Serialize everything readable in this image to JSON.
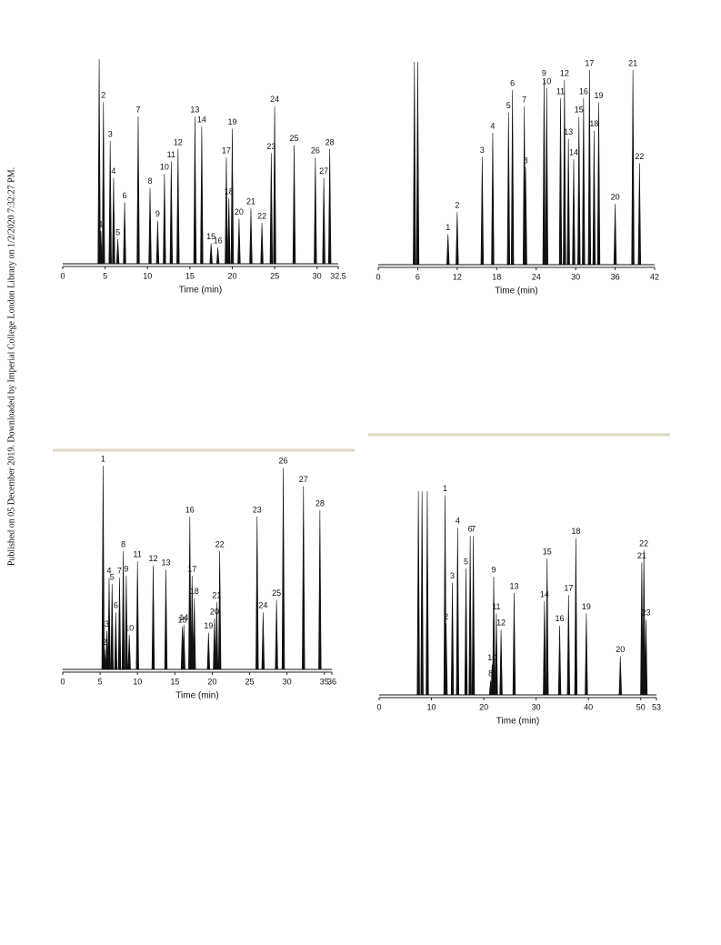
{
  "side_text": "Published on 05 December 2019. Downloaded by Imperial College London Library on 1/2/2020 7:32:27 PM.",
  "chart_data": [
    {
      "type": "chromatogram",
      "xlabel": "Time (min)",
      "xlim": [
        0,
        32.5
      ],
      "xticks": [
        0,
        5,
        10,
        15,
        20,
        25,
        30,
        32.5
      ],
      "color": "#111111",
      "peak_labels": [
        null,
        "1",
        "2",
        "3",
        "4",
        "5",
        "6",
        "7",
        "8",
        "9",
        "10",
        "11",
        "12",
        "13",
        "14",
        "15",
        "16",
        "17",
        "18",
        "19",
        "20",
        "21",
        "22",
        "23",
        "24",
        "25",
        "26",
        "27",
        "28"
      ],
      "x": [
        4.3,
        4.5,
        4.8,
        5.6,
        6.0,
        6.5,
        7.3,
        8.9,
        10.3,
        11.2,
        12.0,
        12.8,
        13.6,
        15.6,
        16.4,
        17.5,
        18.3,
        19.3,
        19.6,
        20.0,
        20.8,
        22.2,
        23.5,
        24.6,
        25.0,
        27.3,
        29.8,
        30.8,
        31.5
      ],
      "values": [
        100,
        16,
        79,
        60,
        42,
        12,
        30,
        72,
        37,
        21,
        44,
        50,
        56,
        72,
        67,
        10,
        8,
        52,
        32,
        66,
        22,
        27,
        20,
        54,
        77,
        58,
        52,
        42,
        56
      ]
    },
    {
      "type": "chromatogram",
      "xlabel": "Time (min)",
      "xlim": [
        0,
        42
      ],
      "xticks": [
        0,
        6,
        12,
        18,
        24,
        30,
        36,
        42
      ],
      "color": "#111111",
      "peak_labels": [
        null,
        null,
        "1",
        "2",
        "3",
        "4",
        "5",
        "6",
        "7",
        "8",
        "9",
        "10",
        "11",
        "12",
        "13",
        "14",
        "15",
        "16",
        "17",
        "18",
        "19",
        "20",
        "21",
        "22"
      ],
      "x": [
        5.5,
        6.0,
        10.6,
        12.0,
        15.8,
        17.4,
        19.8,
        20.4,
        22.2,
        22.4,
        25.2,
        25.6,
        27.7,
        28.3,
        28.9,
        29.7,
        30.5,
        31.2,
        32.1,
        32.8,
        33.5,
        36.0,
        38.7,
        39.7
      ],
      "values": [
        100,
        100,
        15,
        26,
        53,
        65,
        75,
        86,
        78,
        48,
        91,
        87,
        82,
        91,
        62,
        52,
        73,
        82,
        96,
        66,
        80,
        30,
        96,
        50
      ]
    },
    {
      "type": "chromatogram",
      "xlabel": "Time (min)",
      "xlim": [
        0,
        36
      ],
      "xticks": [
        0,
        5,
        10,
        15,
        20,
        25,
        30,
        35,
        36
      ],
      "color": "#111111",
      "peak_labels": [
        "1",
        "2",
        "3",
        "4",
        "5",
        "6",
        "7",
        "8",
        "9",
        "10",
        "11",
        "12",
        "13",
        "14",
        "15",
        "16",
        "17",
        "18",
        "19",
        "20",
        "21",
        "22",
        "23",
        "24",
        "25",
        "26",
        "27",
        "28"
      ],
      "x": [
        5.4,
        5.6,
        5.9,
        6.2,
        6.6,
        7.1,
        7.6,
        8.1,
        8.5,
        8.9,
        10.0,
        12.1,
        13.8,
        16.2,
        16.0,
        17.0,
        17.3,
        17.6,
        19.5,
        20.3,
        20.6,
        21.0,
        26.0,
        26.8,
        28.6,
        29.5,
        32.2,
        34.4
      ],
      "values": [
        100,
        10,
        19,
        45,
        42,
        28,
        45,
        58,
        46,
        17,
        53,
        51,
        49,
        22,
        21,
        75,
        46,
        35,
        18,
        25,
        33,
        58,
        75,
        28,
        34,
        99,
        90,
        78
      ]
    },
    {
      "type": "chromatogram",
      "xlabel": "Time (min)",
      "xlim": [
        0,
        53
      ],
      "xticks": [
        0,
        10,
        20,
        30,
        40,
        50,
        53
      ],
      "color": "#111111",
      "peak_labels": [
        null,
        null,
        null,
        "1",
        "2",
        "3",
        "4",
        "5",
        "6",
        "7",
        "8",
        "9",
        "10",
        "11",
        "12",
        "13",
        "14",
        "15",
        "16",
        "17",
        "18",
        "19",
        "20",
        "21",
        "22",
        "23"
      ],
      "x": [
        7.5,
        8.2,
        9.2,
        12.6,
        12.8,
        14.0,
        15.0,
        16.6,
        17.4,
        18.0,
        21.3,
        21.9,
        21.6,
        22.4,
        23.3,
        25.8,
        31.6,
        32.1,
        34.5,
        36.2,
        37.6,
        39.6,
        46.1,
        50.2,
        50.6,
        51.0
      ],
      "values": [
        100,
        100,
        100,
        98,
        35,
        55,
        82,
        62,
        78,
        78,
        7,
        58,
        15,
        40,
        32,
        50,
        46,
        67,
        34,
        49,
        77,
        40,
        19,
        65,
        71,
        37
      ]
    }
  ]
}
